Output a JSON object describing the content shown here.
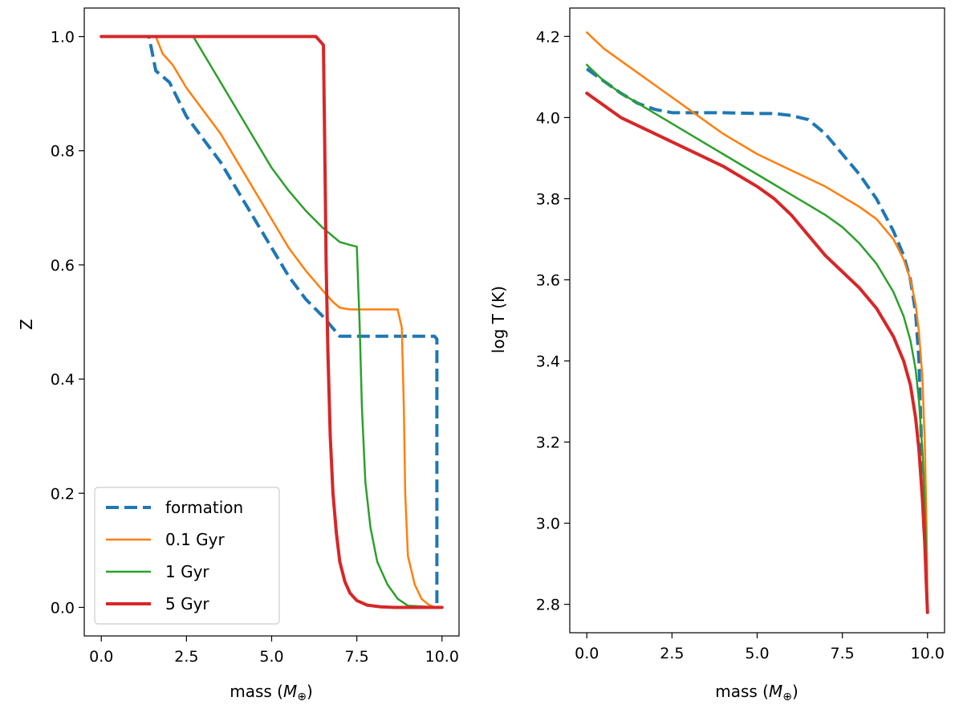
{
  "chart_data": [
    {
      "type": "line",
      "xlabel": "mass (",
      "xlabel_symbol": "M",
      "xlabel_sub": "⊕",
      "xlabel_close": ")",
      "ylabel": "Z",
      "xlim": [
        -0.5,
        10.5
      ],
      "ylim": [
        -0.05,
        1.05
      ],
      "xticks": [
        0.0,
        2.5,
        5.0,
        7.5,
        10.0
      ],
      "xtick_labels": [
        "0.0",
        "2.5",
        "5.0",
        "7.5",
        "10.0"
      ],
      "yticks": [
        0.0,
        0.2,
        0.4,
        0.6,
        0.8,
        1.0
      ],
      "ytick_labels": [
        "0.0",
        "0.2",
        "0.4",
        "0.6",
        "0.8",
        "1.0"
      ],
      "grid": false,
      "legend_position": "lower-left",
      "series": [
        {
          "name": "formation",
          "color": "#1f77b4",
          "style": "dashed",
          "width": 4,
          "x": [
            0,
            1.4,
            1.6,
            2.0,
            2.5,
            3.0,
            3.5,
            4.0,
            4.5,
            5.0,
            5.5,
            6.0,
            6.5,
            7.0,
            7.5,
            8.0,
            8.5,
            9.0,
            9.5,
            9.78,
            9.85,
            9.85,
            10.0
          ],
          "y": [
            1.0,
            1.0,
            0.94,
            0.92,
            0.86,
            0.82,
            0.78,
            0.73,
            0.68,
            0.63,
            0.58,
            0.54,
            0.51,
            0.475,
            0.475,
            0.475,
            0.475,
            0.475,
            0.475,
            0.475,
            0.47,
            0.0,
            0.0
          ]
        },
        {
          "name": "0.1 Gyr",
          "color": "#ff7f0e",
          "style": "solid",
          "width": 2.5,
          "x": [
            0,
            1.6,
            1.8,
            2.1,
            2.5,
            3.0,
            3.5,
            4.0,
            4.5,
            5.0,
            5.5,
            6.0,
            6.5,
            6.8,
            7.0,
            7.3,
            7.8,
            8.3,
            8.7,
            8.82,
            8.88,
            8.92,
            9.0,
            9.2,
            9.4,
            9.6,
            9.8,
            10.0
          ],
          "y": [
            1.0,
            1.0,
            0.97,
            0.95,
            0.91,
            0.87,
            0.83,
            0.78,
            0.73,
            0.68,
            0.63,
            0.59,
            0.555,
            0.535,
            0.525,
            0.522,
            0.522,
            0.522,
            0.522,
            0.49,
            0.35,
            0.2,
            0.09,
            0.04,
            0.015,
            0.005,
            0.0,
            0.0
          ]
        },
        {
          "name": "1 Gyr",
          "color": "#2ca02c",
          "style": "solid",
          "width": 2.5,
          "x": [
            0,
            2.7,
            3.0,
            3.5,
            4.0,
            4.5,
            5.0,
            5.5,
            6.0,
            6.5,
            6.8,
            7.0,
            7.3,
            7.5,
            7.58,
            7.65,
            7.75,
            7.9,
            8.1,
            8.4,
            8.7,
            9.0,
            10.0
          ],
          "y": [
            1.0,
            1.0,
            0.97,
            0.92,
            0.87,
            0.82,
            0.77,
            0.73,
            0.695,
            0.665,
            0.65,
            0.64,
            0.635,
            0.632,
            0.5,
            0.35,
            0.22,
            0.14,
            0.08,
            0.04,
            0.015,
            0.003,
            0.0
          ]
        },
        {
          "name": "5 Gyr",
          "color": "#d62728",
          "style": "solid",
          "width": 4,
          "x": [
            0,
            6.3,
            6.45,
            6.52,
            6.56,
            6.6,
            6.65,
            6.72,
            6.8,
            6.9,
            7.0,
            7.15,
            7.3,
            7.5,
            7.8,
            8.2,
            8.6,
            10.0
          ],
          "y": [
            1.0,
            1.0,
            0.99,
            0.985,
            0.8,
            0.6,
            0.45,
            0.3,
            0.2,
            0.13,
            0.08,
            0.045,
            0.025,
            0.012,
            0.004,
            0.001,
            0.0,
            0.0
          ]
        }
      ]
    },
    {
      "type": "line",
      "xlabel": "mass (",
      "xlabel_symbol": "M",
      "xlabel_sub": "⊕",
      "xlabel_close": ")",
      "ylabel": "log T (K)",
      "xlim": [
        -0.5,
        10.5
      ],
      "ylim": [
        2.73,
        4.27
      ],
      "xticks": [
        0.0,
        2.5,
        5.0,
        7.5,
        10.0
      ],
      "xtick_labels": [
        "0.0",
        "2.5",
        "5.0",
        "7.5",
        "10.0"
      ],
      "yticks": [
        2.8,
        3.0,
        3.2,
        3.4,
        3.6,
        3.8,
        4.0,
        4.2
      ],
      "ytick_labels": [
        "2.8",
        "3.0",
        "3.2",
        "3.4",
        "3.6",
        "3.8",
        "4.0",
        "4.2"
      ],
      "grid": false,
      "series": [
        {
          "name": "formation",
          "color": "#1f77b4",
          "style": "dashed",
          "width": 4,
          "x": [
            0,
            0.5,
            1.0,
            1.5,
            2.0,
            2.5,
            3.0,
            4.0,
            5.0,
            5.5,
            6.0,
            6.5,
            7.0,
            7.5,
            8.0,
            8.5,
            9.0,
            9.3,
            9.5,
            9.65,
            9.75,
            9.82,
            9.87,
            9.9
          ],
          "y": [
            4.12,
            4.09,
            4.06,
            4.035,
            4.02,
            4.012,
            4.012,
            4.012,
            4.01,
            4.01,
            4.005,
            3.995,
            3.96,
            3.91,
            3.86,
            3.8,
            3.72,
            3.66,
            3.6,
            3.52,
            3.4,
            3.2,
            3.05,
            2.98
          ]
        },
        {
          "name": "0.1 Gyr",
          "color": "#ff7f0e",
          "style": "solid",
          "width": 2.5,
          "x": [
            0,
            0.5,
            1.0,
            2.0,
            3.0,
            4.0,
            5.0,
            6.0,
            6.5,
            7.0,
            7.5,
            8.0,
            8.5,
            9.0,
            9.3,
            9.5,
            9.65,
            9.75,
            9.85,
            9.92,
            9.97,
            10.0
          ],
          "y": [
            4.21,
            4.17,
            4.14,
            4.08,
            4.02,
            3.96,
            3.91,
            3.87,
            3.85,
            3.83,
            3.805,
            3.78,
            3.75,
            3.7,
            3.65,
            3.6,
            3.54,
            3.47,
            3.36,
            3.2,
            3.0,
            2.8
          ]
        },
        {
          "name": "1 Gyr",
          "color": "#2ca02c",
          "style": "solid",
          "width": 2.5,
          "x": [
            0,
            0.5,
            1.0,
            2.0,
            3.0,
            4.0,
            5.0,
            5.5,
            6.0,
            6.5,
            7.0,
            7.5,
            8.0,
            8.5,
            9.0,
            9.3,
            9.5,
            9.65,
            9.75,
            9.85,
            9.92,
            9.97,
            10.0
          ],
          "y": [
            4.13,
            4.09,
            4.06,
            4.01,
            3.96,
            3.91,
            3.86,
            3.835,
            3.81,
            3.785,
            3.76,
            3.73,
            3.69,
            3.64,
            3.57,
            3.51,
            3.45,
            3.38,
            3.3,
            3.18,
            3.05,
            2.9,
            2.78
          ]
        },
        {
          "name": "5 Gyr",
          "color": "#d62728",
          "style": "solid",
          "width": 4,
          "x": [
            0,
            0.5,
            1.0,
            2.0,
            3.0,
            4.0,
            5.0,
            5.5,
            6.0,
            6.5,
            7.0,
            7.5,
            8.0,
            8.5,
            9.0,
            9.3,
            9.5,
            9.65,
            9.75,
            9.85,
            9.92,
            9.96,
            10.0
          ],
          "y": [
            4.06,
            4.03,
            4.0,
            3.96,
            3.92,
            3.88,
            3.83,
            3.8,
            3.76,
            3.71,
            3.66,
            3.62,
            3.58,
            3.53,
            3.46,
            3.4,
            3.34,
            3.26,
            3.18,
            3.06,
            2.95,
            2.86,
            2.78
          ]
        }
      ]
    }
  ]
}
